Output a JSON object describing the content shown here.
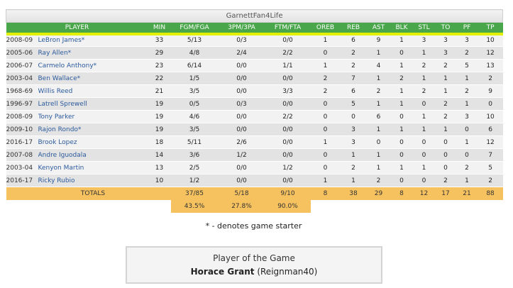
{
  "team_name": "GarnettFan4Life",
  "columns": [
    "PLAYER",
    "MIN",
    "FGM/FGA",
    "3PM/3PA",
    "FTM/FTA",
    "OREB",
    "REB",
    "AST",
    "BLK",
    "STL",
    "TO",
    "PF",
    "TP"
  ],
  "players": [
    {
      "season": "2008-09",
      "name": "LeBron James*",
      "min": "33",
      "fg": "5/13",
      "tp3": "0/3",
      "ft": "0/0",
      "oreb": "1",
      "reb": "6",
      "ast": "9",
      "blk": "1",
      "stl": "3",
      "to": "3",
      "pf": "3",
      "tp": "10"
    },
    {
      "season": "2005-06",
      "name": "Ray Allen*",
      "min": "29",
      "fg": "4/8",
      "tp3": "2/4",
      "ft": "2/2",
      "oreb": "0",
      "reb": "2",
      "ast": "1",
      "blk": "0",
      "stl": "1",
      "to": "3",
      "pf": "2",
      "tp": "12"
    },
    {
      "season": "2006-07",
      "name": "Carmelo Anthony*",
      "min": "23",
      "fg": "6/14",
      "tp3": "0/0",
      "ft": "1/1",
      "oreb": "1",
      "reb": "2",
      "ast": "4",
      "blk": "1",
      "stl": "2",
      "to": "2",
      "pf": "5",
      "tp": "13"
    },
    {
      "season": "2003-04",
      "name": "Ben Wallace*",
      "min": "22",
      "fg": "1/5",
      "tp3": "0/0",
      "ft": "0/0",
      "oreb": "2",
      "reb": "7",
      "ast": "1",
      "blk": "2",
      "stl": "1",
      "to": "1",
      "pf": "1",
      "tp": "2"
    },
    {
      "season": "1968-69",
      "name": "Willis Reed",
      "min": "21",
      "fg": "3/5",
      "tp3": "0/0",
      "ft": "3/3",
      "oreb": "2",
      "reb": "6",
      "ast": "2",
      "blk": "1",
      "stl": "2",
      "to": "1",
      "pf": "2",
      "tp": "9"
    },
    {
      "season": "1996-97",
      "name": "Latrell Sprewell",
      "min": "19",
      "fg": "0/5",
      "tp3": "0/3",
      "ft": "0/0",
      "oreb": "0",
      "reb": "5",
      "ast": "1",
      "blk": "1",
      "stl": "0",
      "to": "2",
      "pf": "1",
      "tp": "0"
    },
    {
      "season": "2008-09",
      "name": "Tony Parker",
      "min": "19",
      "fg": "4/6",
      "tp3": "0/0",
      "ft": "2/2",
      "oreb": "0",
      "reb": "0",
      "ast": "6",
      "blk": "0",
      "stl": "1",
      "to": "2",
      "pf": "3",
      "tp": "10"
    },
    {
      "season": "2009-10",
      "name": "Rajon Rondo*",
      "min": "19",
      "fg": "3/5",
      "tp3": "0/0",
      "ft": "0/0",
      "oreb": "0",
      "reb": "3",
      "ast": "1",
      "blk": "1",
      "stl": "1",
      "to": "1",
      "pf": "0",
      "tp": "6"
    },
    {
      "season": "2016-17",
      "name": "Brook Lopez",
      "min": "18",
      "fg": "5/11",
      "tp3": "2/6",
      "ft": "0/0",
      "oreb": "1",
      "reb": "3",
      "ast": "0",
      "blk": "0",
      "stl": "0",
      "to": "0",
      "pf": "1",
      "tp": "12"
    },
    {
      "season": "2007-08",
      "name": "Andre Iguodala",
      "min": "14",
      "fg": "3/6",
      "tp3": "1/2",
      "ft": "0/0",
      "oreb": "0",
      "reb": "1",
      "ast": "1",
      "blk": "0",
      "stl": "0",
      "to": "0",
      "pf": "0",
      "tp": "7"
    },
    {
      "season": "2003-04",
      "name": "Kenyon Martin",
      "min": "13",
      "fg": "2/5",
      "tp3": "0/0",
      "ft": "1/2",
      "oreb": "0",
      "reb": "2",
      "ast": "1",
      "blk": "1",
      "stl": "1",
      "to": "0",
      "pf": "2",
      "tp": "5"
    },
    {
      "season": "2016-17",
      "name": "Ricky Rubio",
      "min": "10",
      "fg": "1/2",
      "tp3": "0/0",
      "ft": "0/0",
      "oreb": "1",
      "reb": "1",
      "ast": "2",
      "blk": "0",
      "stl": "0",
      "to": "2",
      "pf": "1",
      "tp": "2"
    }
  ],
  "totals": {
    "label": "TOTALS",
    "fg": "37/85",
    "tp3": "5/18",
    "ft": "9/10",
    "oreb": "8",
    "reb": "38",
    "ast": "29",
    "blk": "8",
    "stl": "12",
    "to": "17",
    "pf": "21",
    "tp": "88"
  },
  "percentages": {
    "fg": "43.5%",
    "tp3": "27.8%",
    "ft": "90.0%"
  },
  "starter_note": "* - denotes game starter",
  "player_of_game": {
    "title": "Player of the Game",
    "name": "Horace Grant",
    "owner": " (Reignman40)"
  }
}
